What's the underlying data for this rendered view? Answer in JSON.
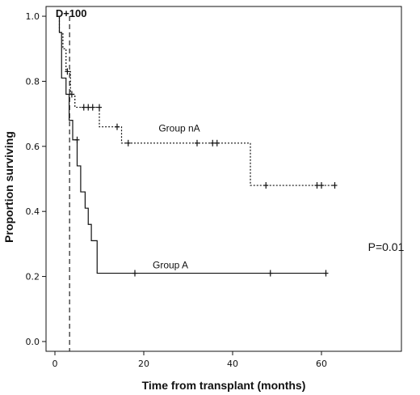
{
  "chart_data": {
    "type": "line",
    "xlabel": "Time from transplant (months)",
    "ylabel": "Proportion surviving",
    "xlim": [
      -2,
      78
    ],
    "ylim": [
      -0.03,
      1.03
    ],
    "x_ticks": [
      0,
      20,
      40,
      60
    ],
    "y_ticks": [
      0.0,
      0.2,
      0.4,
      0.6,
      0.8,
      1.0
    ],
    "y_tick_labels": [
      "0.0",
      "0.2",
      "0.4",
      "0.6",
      "0.8",
      "1.0"
    ],
    "grid": false,
    "reference_line": {
      "x": 3.3,
      "label": "D+100",
      "style": "dashed"
    },
    "annotations": [
      {
        "text": "Group nA",
        "x": 28,
        "y": 0.645
      },
      {
        "text": "Group A",
        "x": 26,
        "y": 0.225
      },
      {
        "text": "P=0.01",
        "position": "right"
      }
    ],
    "series": [
      {
        "name": "Group nA",
        "style": "dotted",
        "step_points": [
          [
            0.5,
            1.0
          ],
          [
            1.0,
            0.95
          ],
          [
            1.8,
            0.9
          ],
          [
            2.5,
            0.83
          ],
          [
            3.5,
            0.76
          ],
          [
            4.5,
            0.72
          ],
          [
            10,
            0.66
          ],
          [
            15,
            0.61
          ],
          [
            44,
            0.48
          ],
          [
            63,
            0.48
          ]
        ],
        "censored": [
          [
            2.8,
            0.83
          ],
          [
            3.8,
            0.76
          ],
          [
            6.5,
            0.72
          ],
          [
            7.5,
            0.72
          ],
          [
            8.5,
            0.72
          ],
          [
            10,
            0.72
          ],
          [
            14,
            0.66
          ],
          [
            16.5,
            0.61
          ],
          [
            32,
            0.61
          ],
          [
            35.5,
            0.61
          ],
          [
            36.5,
            0.61
          ],
          [
            47.5,
            0.48
          ],
          [
            59,
            0.48
          ],
          [
            60,
            0.48
          ],
          [
            63,
            0.48
          ]
        ]
      },
      {
        "name": "Group A",
        "style": "solid",
        "step_points": [
          [
            0.5,
            1.0
          ],
          [
            1.0,
            0.95
          ],
          [
            1.5,
            0.81
          ],
          [
            2.5,
            0.76
          ],
          [
            3.2,
            0.68
          ],
          [
            4.0,
            0.62
          ],
          [
            5.0,
            0.54
          ],
          [
            5.8,
            0.46
          ],
          [
            6.8,
            0.41
          ],
          [
            7.5,
            0.36
          ],
          [
            8.2,
            0.31
          ],
          [
            9.5,
            0.21
          ],
          [
            61,
            0.21
          ]
        ],
        "censored": [
          [
            5.0,
            0.62
          ],
          [
            18,
            0.21
          ],
          [
            48.5,
            0.21
          ],
          [
            61,
            0.21
          ]
        ]
      }
    ]
  }
}
